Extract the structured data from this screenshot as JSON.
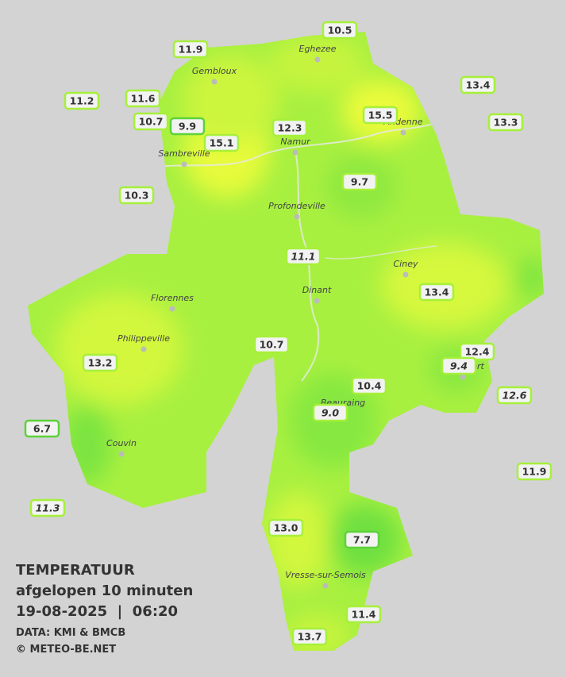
{
  "title": {
    "line1": "TEMPERATUUR",
    "line2": "afgelopen 10 minuten",
    "line3": "19-08-2025  |  06:20",
    "source": "DATA: KMI & BMCB",
    "copyright": "© METEO-BE.NET"
  },
  "cities": [
    "Eghezee",
    "Gembloux",
    "Andenne",
    "Namur",
    "Sambreville",
    "Profondeville",
    "Ciney",
    "Florennes",
    "Dinant",
    "Philippeville",
    "Rochefort",
    "Beauraing",
    "Couvin",
    "Vresse-sur-Semois"
  ],
  "stations": [
    "10.5",
    "11.9",
    "11.2",
    "11.6",
    "13.4",
    "10.7",
    "9.9",
    "12.3",
    "15.5",
    "13.3",
    "15.1",
    "10.3",
    "9.7",
    "11.1",
    "13.4",
    "10.7",
    "12.4",
    "9.4",
    "13.2",
    "10.4",
    "12.6",
    "9.0",
    "6.7",
    "11.9",
    "11.3",
    "13.0",
    "7.7",
    "11.4",
    "13.7"
  ]
}
